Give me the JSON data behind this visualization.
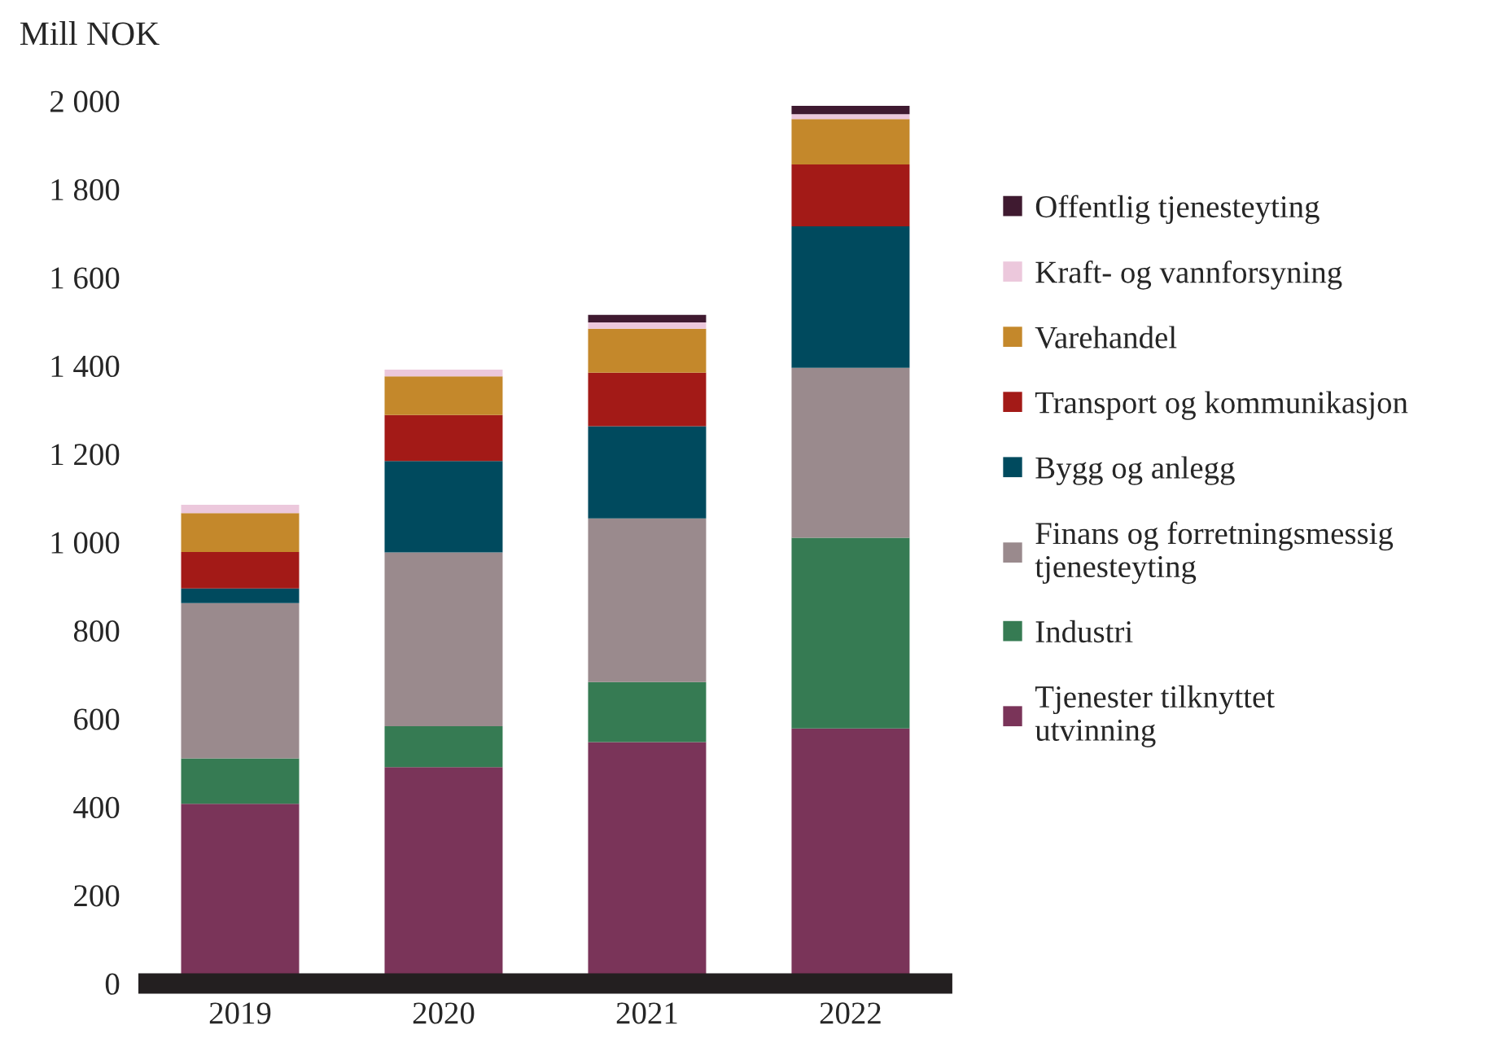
{
  "chart_data": {
    "type": "bar",
    "stacked": true,
    "ylabel": "Mill NOK",
    "categories": [
      "2019",
      "2020",
      "2021",
      "2022"
    ],
    "series": [
      {
        "name": "Tjenester tilknyttet utvinning",
        "color": "#7a3459",
        "values": [
          407,
          490,
          547,
          578
        ]
      },
      {
        "name": "Industri",
        "color": "#367b53",
        "values": [
          103,
          93,
          136,
          432
        ]
      },
      {
        "name": "Finans og forretningsmessig tjenesteyting",
        "color": "#9a8a8d",
        "values": [
          352,
          394,
          371,
          385
        ]
      },
      {
        "name": "Bygg og anlegg",
        "color": "#004a5e",
        "values": [
          33,
          207,
          209,
          321
        ]
      },
      {
        "name": "Transport og kommunikasjon",
        "color": "#a31a17",
        "values": [
          83,
          104,
          121,
          140
        ]
      },
      {
        "name": "Varehandel",
        "color": "#c4882b",
        "values": [
          88,
          88,
          100,
          103
        ]
      },
      {
        "name": "Kraft- og vannforsyning",
        "color": "#ecc8dc",
        "values": [
          19,
          15,
          14,
          11
        ]
      },
      {
        "name": "Offentlig tjenesteyting",
        "color": "#3f1a30",
        "values": [
          0,
          0,
          17,
          19
        ]
      }
    ],
    "ylim": [
      0,
      2000
    ],
    "yticks": [
      {
        "value": 0,
        "label": "0"
      },
      {
        "value": 200,
        "label": "200"
      },
      {
        "value": 400,
        "label": "400"
      },
      {
        "value": 600,
        "label": "600"
      },
      {
        "value": 800,
        "label": "800"
      },
      {
        "value": 1000,
        "label": "1 000"
      },
      {
        "value": 1200,
        "label": "1 200"
      },
      {
        "value": 1400,
        "label": "1 400"
      },
      {
        "value": 1600,
        "label": "1 600"
      },
      {
        "value": 1800,
        "label": "1 800"
      },
      {
        "value": 2000,
        "label": "2 000"
      }
    ],
    "grid": false,
    "legend": "right"
  }
}
